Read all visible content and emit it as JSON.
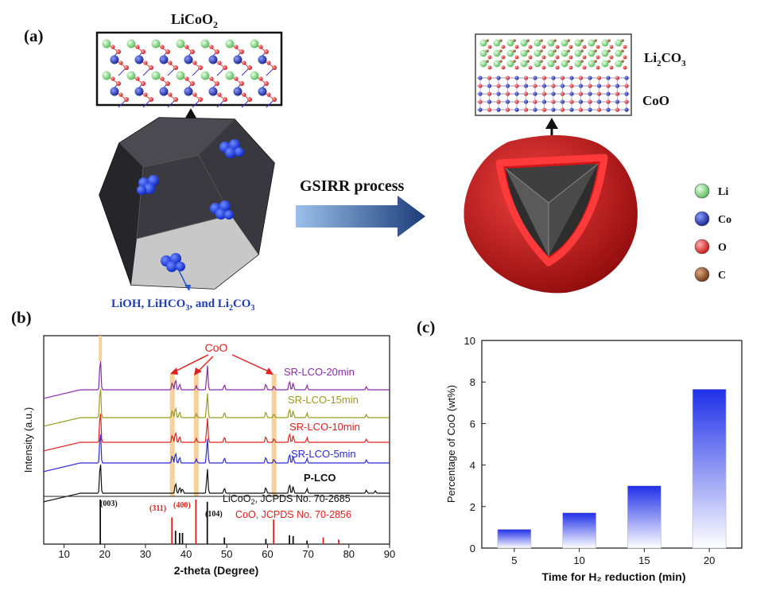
{
  "panel_a": {
    "label": "(a)",
    "crystal_left_title": "LiCoO",
    "crystal_left_title_sub": "2",
    "arrow_label": "GSIRR process",
    "surface_species": {
      "p1": "LiOH, LiHCO",
      "s1": "3",
      "p2": ", and Li",
      "s2": "2",
      "p3": "CO",
      "s3": "3"
    },
    "layer_top": {
      "p1": "Li",
      "s1": "2",
      "p2": "CO",
      "s2": "3"
    },
    "layer_bottom": "CoO",
    "legend": [
      {
        "label": "Li",
        "color": "#7fd37f"
      },
      {
        "label": "Co",
        "color": "#1f2fa8"
      },
      {
        "label": "O",
        "color": "#e02020"
      },
      {
        "label": "C",
        "color": "#8a4a22"
      }
    ]
  },
  "panel_b": {
    "label": "(b)",
    "ylabel": "Intensity (a.u.)",
    "xlabel": "2-theta (Degree)",
    "annotation": "CoO",
    "peak_labels_black": [
      "(003)",
      "(104)"
    ],
    "peak_labels_red": [
      "(311)",
      "(400)"
    ],
    "ref_labels": [
      {
        "text": "LiCoO",
        "sub": "2",
        "rest": ", JCPDS No. 70-2685",
        "color": "#111111"
      },
      {
        "text": "CoO, JCPDS No. 70-2856",
        "sub": "",
        "rest": "",
        "color": "#e0201e"
      }
    ]
  },
  "panel_c": {
    "label": "(c)"
  },
  "chart_data": [
    {
      "type": "line",
      "xlabel": "2-theta (Degree)",
      "ylabel": "Intensity (a.u.)",
      "xlim": [
        5,
        90
      ],
      "xticks": [
        10,
        20,
        30,
        40,
        50,
        60,
        70,
        80,
        90
      ],
      "series": [
        {
          "name": "P-LCO",
          "color": "#111111",
          "peaks": [
            18.9,
            37.4,
            38.4,
            39.1,
            45.2,
            49.4,
            59.6,
            65.4,
            66.3,
            69.7,
            84.3,
            86.5
          ]
        },
        {
          "name": "SR-LCO-5min",
          "color": "#2a2ad8",
          "peaks": [
            18.9,
            36.6,
            37.4,
            38.4,
            42.5,
            45.2,
            49.4,
            59.6,
            61.6,
            65.4,
            66.3,
            69.7,
            84.3
          ]
        },
        {
          "name": "SR-LCO-10min",
          "color": "#e0201e",
          "peaks": [
            18.9,
            36.6,
            37.4,
            38.4,
            42.5,
            45.2,
            49.4,
            59.6,
            61.6,
            65.4,
            66.3,
            69.7,
            84.3
          ]
        },
        {
          "name": "SR-LCO-15min",
          "color": "#9a9a1e",
          "peaks": [
            18.9,
            36.6,
            37.4,
            38.4,
            42.5,
            45.2,
            49.4,
            59.6,
            61.6,
            65.4,
            66.3,
            69.7,
            84.3
          ]
        },
        {
          "name": "SR-LCO-20min",
          "color": "#8a2aa8",
          "peaks": [
            18.9,
            36.6,
            37.4,
            38.4,
            42.5,
            45.2,
            49.4,
            59.6,
            61.6,
            65.4,
            66.3,
            69.7,
            84.3
          ]
        }
      ],
      "references": [
        {
          "name": "LiCoO2, JCPDS No. 70-2685",
          "color": "#111111",
          "lines": [
            [
              18.9,
              1.0
            ],
            [
              37.4,
              0.3
            ],
            [
              38.4,
              0.25
            ],
            [
              39.1,
              0.25
            ],
            [
              45.2,
              0.95
            ],
            [
              49.4,
              0.15
            ],
            [
              59.6,
              0.12
            ],
            [
              65.4,
              0.2
            ],
            [
              66.3,
              0.18
            ],
            [
              69.7,
              0.08
            ]
          ]
        },
        {
          "name": "CoO, JCPDS No. 70-2856",
          "color": "#e0201e",
          "lines": [
            [
              36.5,
              0.6
            ],
            [
              42.4,
              1.0
            ],
            [
              61.5,
              0.55
            ],
            [
              73.7,
              0.15
            ],
            [
              77.5,
              0.1
            ]
          ]
        }
      ],
      "highlight_peaks": [
        36.6,
        42.5,
        61.6
      ]
    },
    {
      "type": "bar",
      "categories": [
        "5",
        "10",
        "15",
        "20"
      ],
      "values": [
        0.9,
        1.7,
        3.0,
        7.65
      ],
      "xlabel": "Time for H₂ reduction (min)",
      "ylabel": "Percentage of CoO (wt%)",
      "ylim": [
        0,
        10
      ],
      "yticks": [
        0,
        2,
        4,
        6,
        8,
        10
      ],
      "bar_color": "#1f2fe8"
    }
  ]
}
